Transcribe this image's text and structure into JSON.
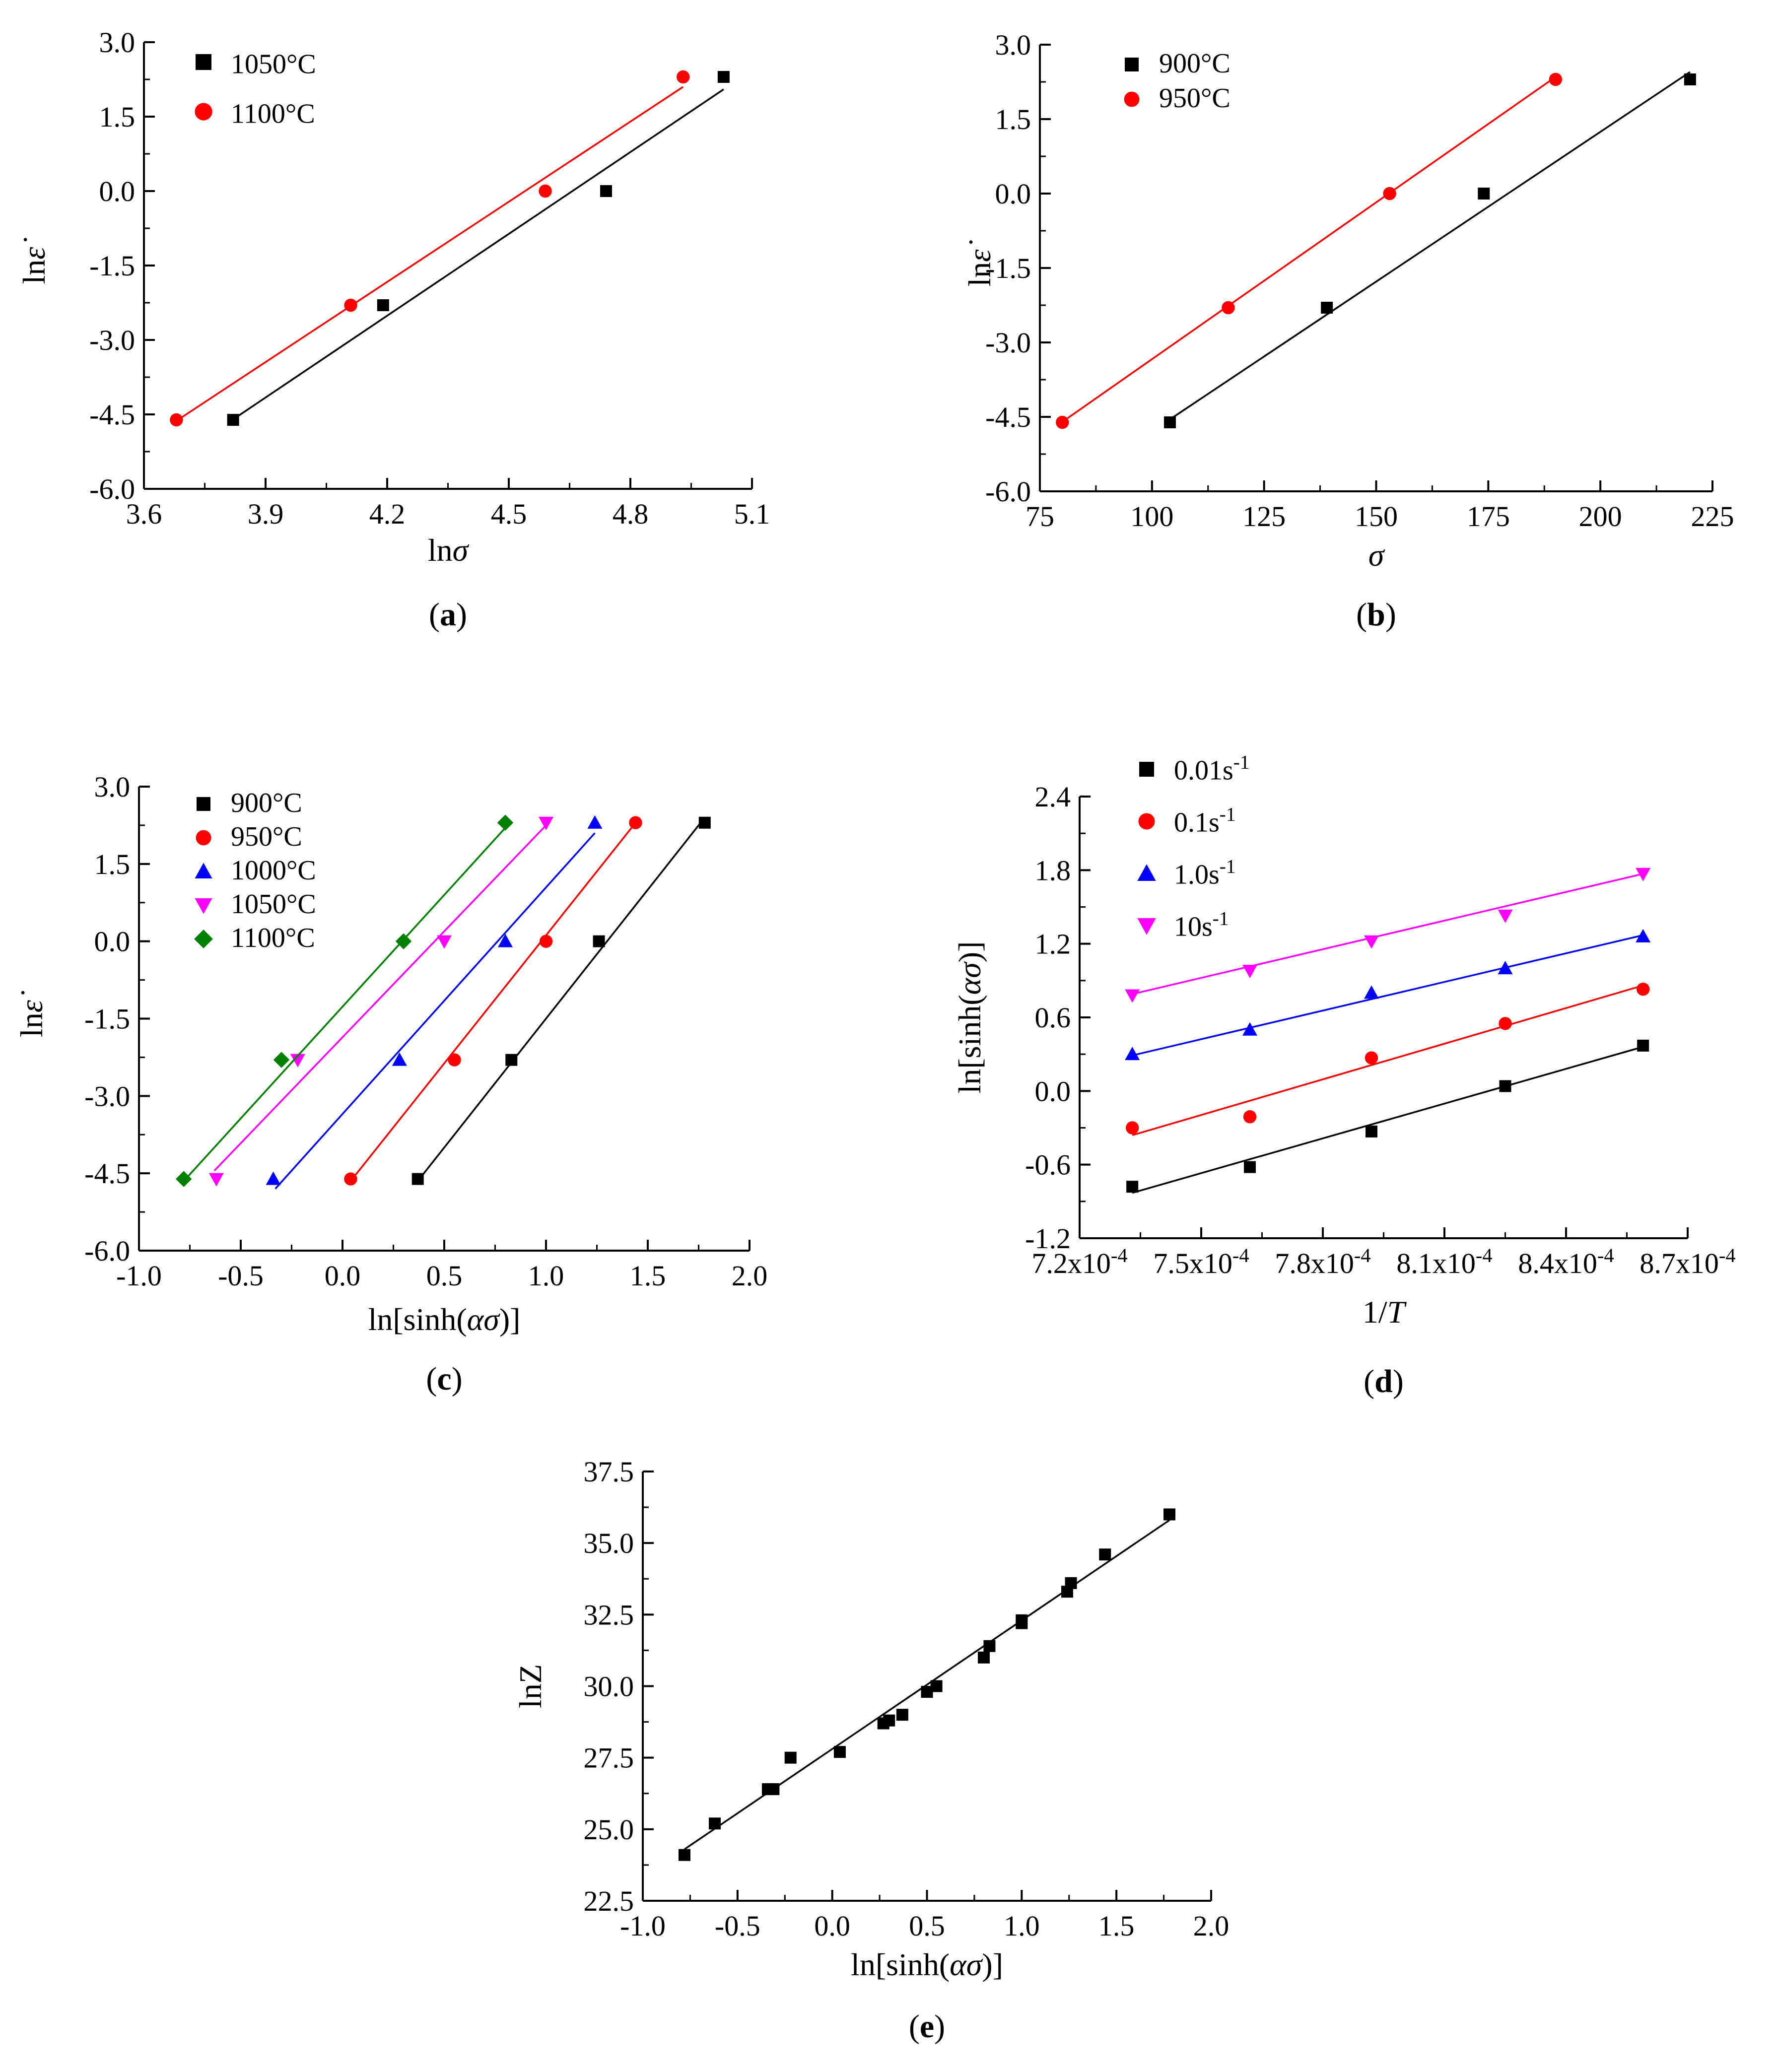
{
  "colors": {
    "black": "#000000",
    "red": "#ff0000",
    "blue": "#0000ff",
    "magenta": "#ff00ff",
    "green": "#008000"
  },
  "chart_data": [
    {
      "id": "a",
      "type": "scatter",
      "title": "",
      "panel_label": "a",
      "xlabel": "lnσ",
      "ylabel": "lnε̇",
      "xlim": [
        3.6,
        5.1
      ],
      "ylim": [
        -6.0,
        3.0
      ],
      "xticks": [
        "3.6",
        "3.9",
        "4.2",
        "4.5",
        "4.8",
        "5.1"
      ],
      "yticks": [
        "-6.0",
        "-4.5",
        "-3.0",
        "-1.5",
        "0.0",
        "1.5",
        "3.0"
      ],
      "legend_position": "top-left",
      "series": [
        {
          "name": "1050°C",
          "marker": "square",
          "color": "#000000",
          "x": [
            3.82,
            4.19,
            4.74,
            5.03
          ],
          "y": [
            -4.61,
            -2.3,
            0.0,
            2.3
          ],
          "fit": [
            [
              3.82,
              -4.6
            ],
            [
              5.03,
              2.05
            ]
          ]
        },
        {
          "name": "1100°C",
          "marker": "circle",
          "color": "#ff0000",
          "x": [
            3.68,
            4.11,
            4.59,
            4.93
          ],
          "y": [
            -4.61,
            -2.3,
            0.0,
            2.3
          ],
          "fit": [
            [
              3.68,
              -4.63
            ],
            [
              4.93,
              2.1
            ]
          ]
        }
      ]
    },
    {
      "id": "b",
      "type": "scatter",
      "title": "",
      "panel_label": "b",
      "xlabel": "σ",
      "ylabel": "lnε̇",
      "xlim": [
        75,
        225
      ],
      "ylim": [
        -6.0,
        3.0
      ],
      "xticks": [
        "75",
        "100",
        "125",
        "150",
        "175",
        "200",
        "225"
      ],
      "yticks": [
        "-6.0",
        "-4.5",
        "-3.0",
        "-1.5",
        "0.0",
        "1.5",
        "3.0"
      ],
      "legend_position": "top-left",
      "series": [
        {
          "name": "900°C",
          "marker": "square",
          "color": "#000000",
          "x": [
            104,
            139,
            174,
            220
          ],
          "y": [
            -4.61,
            -2.3,
            0.0,
            2.3
          ],
          "fit": [
            [
              104,
              -4.55
            ],
            [
              220,
              2.45
            ]
          ]
        },
        {
          "name": "950°C",
          "marker": "circle",
          "color": "#ff0000",
          "x": [
            80,
            117,
            153,
            190
          ],
          "y": [
            -4.61,
            -2.3,
            0.0,
            2.3
          ],
          "fit": [
            [
              80,
              -4.6
            ],
            [
              190,
              2.35
            ]
          ]
        }
      ]
    },
    {
      "id": "c",
      "type": "scatter",
      "title": "",
      "panel_label": "c",
      "xlabel": "ln[sinh(ασ)]",
      "ylabel": "lnε̇",
      "xlim": [
        -1.0,
        2.0
      ],
      "ylim": [
        -6.0,
        3.0
      ],
      "xticks": [
        "-1.0",
        "-0.5",
        "0.0",
        "0.5",
        "1.0",
        "1.5",
        "2.0"
      ],
      "yticks": [
        "-6.0",
        "-4.5",
        "-3.0",
        "-1.5",
        "0.0",
        "1.5",
        "3.0"
      ],
      "legend_position": "top-left",
      "series": [
        {
          "name": "900°C",
          "marker": "square",
          "color": "#000000",
          "x": [
            0.37,
            0.83,
            1.26,
            1.78
          ],
          "y": [
            -4.61,
            -2.3,
            0.0,
            2.3
          ],
          "fit": [
            [
              0.36,
              -4.7
            ],
            [
              1.78,
              2.4
            ]
          ]
        },
        {
          "name": "950°C",
          "marker": "circle",
          "color": "#ff0000",
          "x": [
            0.04,
            0.55,
            1.0,
            1.44
          ],
          "y": [
            -4.61,
            -2.3,
            0.0,
            2.3
          ],
          "fit": [
            [
              0.03,
              -4.7
            ],
            [
              1.42,
              2.2
            ]
          ]
        },
        {
          "name": "1000°C",
          "marker": "triangle-up",
          "color": "#0000ff",
          "x": [
            -0.34,
            0.28,
            0.8,
            1.24
          ],
          "y": [
            -4.61,
            -2.3,
            0.0,
            2.3
          ],
          "fit": [
            [
              -0.33,
              -4.8
            ],
            [
              1.24,
              2.1
            ]
          ]
        },
        {
          "name": "1050°C",
          "marker": "triangle-down",
          "color": "#ff00ff",
          "x": [
            -0.62,
            -0.22,
            0.5,
            1.0
          ],
          "y": [
            -4.61,
            -2.3,
            0.0,
            2.3
          ],
          "fit": [
            [
              -0.63,
              -4.45
            ],
            [
              1.0,
              2.25
            ]
          ]
        },
        {
          "name": "1100°C",
          "marker": "diamond",
          "color": "#008000",
          "x": [
            -0.78,
            -0.3,
            0.3,
            0.8
          ],
          "y": [
            -4.61,
            -2.3,
            0.0,
            2.3
          ],
          "fit": [
            [
              -0.78,
              -4.65
            ],
            [
              0.8,
              2.2
            ]
          ]
        }
      ]
    },
    {
      "id": "d",
      "type": "scatter",
      "title": "",
      "panel_label": "d",
      "xlabel": "1/T",
      "ylabel": "ln[sinh(ασ)]",
      "xlim": [
        0.00072,
        0.00087
      ],
      "ylim": [
        -1.2,
        2.4
      ],
      "xticks": [
        "7.2x10-4",
        "7.5x10-4",
        "7.8x10-4",
        "8.1x10-4",
        "8.4x10-4",
        "8.7x10-4"
      ],
      "yticks": [
        "-1.2",
        "-0.6",
        "0.0",
        "0.6",
        "1.2",
        "1.8",
        "2.4"
      ],
      "legend_position": "top-left",
      "series": [
        {
          "name": "0.01s-1",
          "marker": "square",
          "color": "#000000",
          "x": [
            0.000733,
            0.000762,
            0.000792,
            0.000825,
            0.000859
          ],
          "y": [
            -0.78,
            -0.62,
            -0.33,
            0.04,
            0.37
          ],
          "fit": [
            [
              0.000733,
              -0.83
            ],
            [
              0.000859,
              0.36
            ]
          ]
        },
        {
          "name": "0.1s-1",
          "marker": "circle",
          "color": "#ff0000",
          "x": [
            0.000733,
            0.000762,
            0.000792,
            0.000825,
            0.000859
          ],
          "y": [
            -0.3,
            -0.21,
            0.27,
            0.55,
            0.83
          ],
          "fit": [
            [
              0.000733,
              -0.36
            ],
            [
              0.000859,
              0.86
            ]
          ]
        },
        {
          "name": "1.0s-1",
          "marker": "triangle-up",
          "color": "#0000ff",
          "x": [
            0.000733,
            0.000762,
            0.000792,
            0.000825,
            0.000859
          ],
          "y": [
            0.3,
            0.5,
            0.8,
            1.0,
            1.26
          ],
          "fit": [
            [
              0.000733,
              0.29
            ],
            [
              0.000859,
              1.27
            ]
          ]
        },
        {
          "name": "10s-1",
          "marker": "triangle-down",
          "color": "#ff00ff",
          "x": [
            0.000733,
            0.000762,
            0.000792,
            0.000825,
            0.000859
          ],
          "y": [
            0.78,
            0.98,
            1.22,
            1.43,
            1.77
          ],
          "fit": [
            [
              0.000733,
              0.79
            ],
            [
              0.000859,
              1.77
            ]
          ]
        }
      ]
    },
    {
      "id": "e",
      "type": "scatter",
      "title": "",
      "panel_label": "e",
      "xlabel": "ln[sinh(ασ)]",
      "ylabel": "lnZ",
      "xlim": [
        -1.0,
        2.0
      ],
      "ylim": [
        22.5,
        37.5
      ],
      "xticks": [
        "-1.0",
        "-0.5",
        "0.0",
        "0.5",
        "1.0",
        "1.5",
        "2.0"
      ],
      "yticks": [
        "22.5",
        "25.0",
        "27.5",
        "30.0",
        "32.5",
        "35.0",
        "37.5"
      ],
      "legend_position": "none",
      "series": [
        {
          "name": "",
          "marker": "square",
          "color": "#000000",
          "x": [
            -0.78,
            -0.62,
            -0.34,
            -0.31,
            -0.22,
            0.04,
            0.27,
            0.3,
            0.37,
            0.5,
            0.55,
            0.8,
            0.83,
            1.0,
            1.0,
            1.24,
            1.26,
            1.44,
            1.78
          ],
          "y": [
            24.1,
            25.2,
            26.4,
            26.4,
            27.5,
            27.7,
            28.7,
            28.8,
            29.0,
            29.8,
            30.0,
            31.0,
            31.4,
            32.2,
            32.3,
            33.3,
            33.6,
            34.6,
            36.0
          ],
          "fit": [
            [
              -0.78,
              24.3
            ],
            [
              1.78,
              35.8
            ]
          ]
        }
      ]
    }
  ]
}
